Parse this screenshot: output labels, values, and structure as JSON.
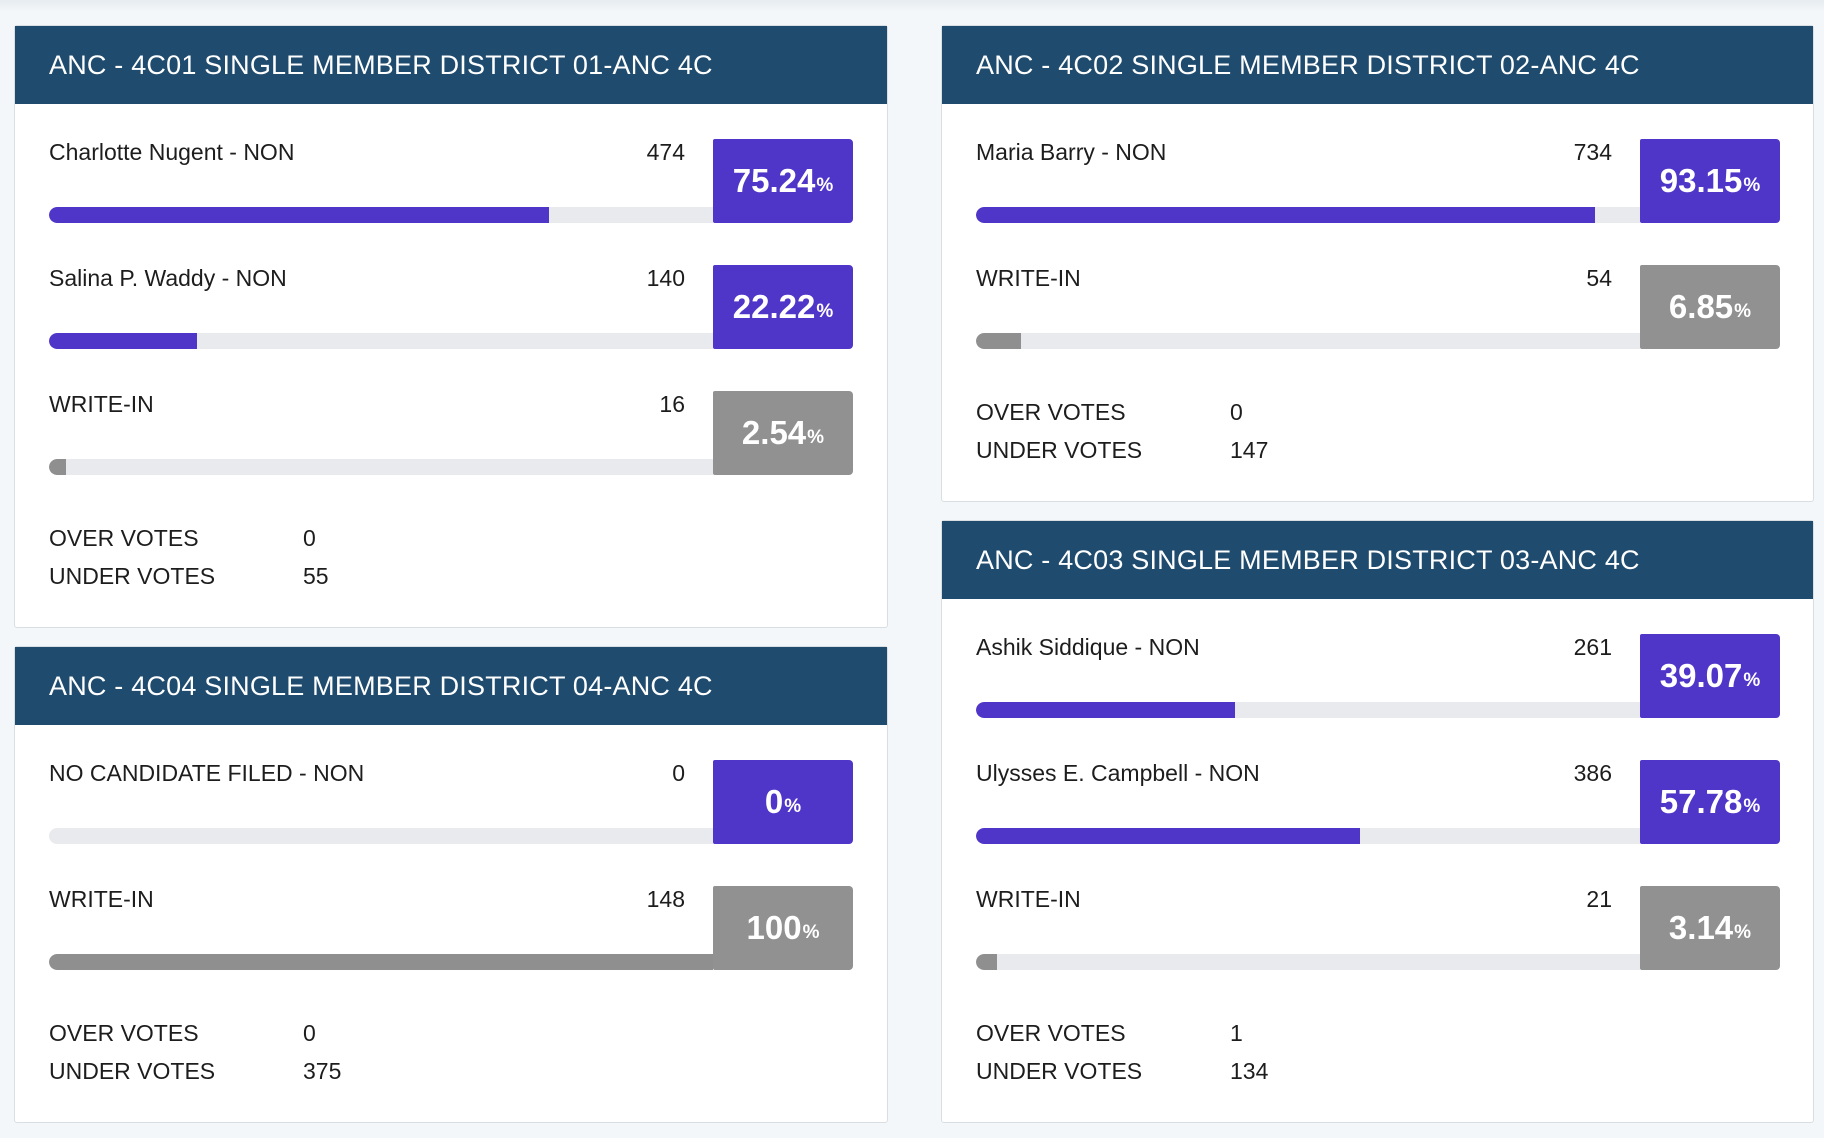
{
  "colors": {
    "header": "#1f4b6e",
    "leader": "#4f35c8",
    "other": "#919191",
    "track": "#e9eaee"
  },
  "contests": [
    {
      "title": "ANC - 4C01 SINGLE MEMBER DISTRICT 01-ANC 4C",
      "candidates": [
        {
          "name": "Charlotte Nugent - NON",
          "votes": "474",
          "pct": "75.24",
          "share": 75.24,
          "color": "purple"
        },
        {
          "name": "Salina P. Waddy - NON",
          "votes": "140",
          "pct": "22.22",
          "share": 22.22,
          "color": "purple"
        },
        {
          "name": "WRITE-IN",
          "votes": "16",
          "pct": "2.54",
          "share": 2.54,
          "color": "gray"
        }
      ],
      "over_votes_label": "OVER VOTES",
      "over_votes": "0",
      "under_votes_label": "UNDER VOTES",
      "under_votes": "55"
    },
    {
      "title": "ANC - 4C02 SINGLE MEMBER DISTRICT 02-ANC 4C",
      "candidates": [
        {
          "name": "Maria Barry - NON",
          "votes": "734",
          "pct": "93.15",
          "share": 93.15,
          "color": "purple"
        },
        {
          "name": "WRITE-IN",
          "votes": "54",
          "pct": "6.85",
          "share": 6.85,
          "color": "gray"
        }
      ],
      "over_votes_label": "OVER VOTES",
      "over_votes": "0",
      "under_votes_label": "UNDER VOTES",
      "under_votes": "147"
    },
    {
      "title": "ANC - 4C04 SINGLE MEMBER DISTRICT 04-ANC 4C",
      "candidates": [
        {
          "name": "NO CANDIDATE FILED - NON",
          "votes": "0",
          "pct": "0",
          "share": 0,
          "color": "purple"
        },
        {
          "name": "WRITE-IN",
          "votes": "148",
          "pct": "100",
          "share": 100,
          "color": "gray"
        }
      ],
      "over_votes_label": "OVER VOTES",
      "over_votes": "0",
      "under_votes_label": "UNDER VOTES",
      "under_votes": "375"
    },
    {
      "title": "ANC - 4C03 SINGLE MEMBER DISTRICT 03-ANC 4C",
      "candidates": [
        {
          "name": "Ashik Siddique - NON",
          "votes": "261",
          "pct": "39.07",
          "share": 39.07,
          "color": "purple"
        },
        {
          "name": "Ulysses E. Campbell - NON",
          "votes": "386",
          "pct": "57.78",
          "share": 57.78,
          "color": "purple"
        },
        {
          "name": "WRITE-IN",
          "votes": "21",
          "pct": "3.14",
          "share": 3.14,
          "color": "gray"
        }
      ],
      "over_votes_label": "OVER VOTES",
      "over_votes": "1",
      "under_votes_label": "UNDER VOTES",
      "under_votes": "134"
    }
  ]
}
